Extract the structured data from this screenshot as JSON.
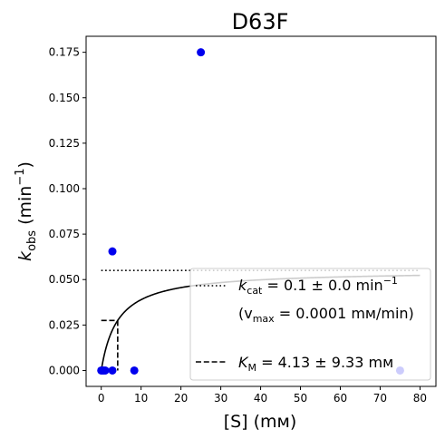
{
  "chart_data": {
    "type": "scatter",
    "title": "D63F",
    "xlabel": "[S] (mм)",
    "ylabel_main": "k",
    "ylabel_sub": "obs",
    "ylabel_rest": " (min",
    "ylabel_sup": "−1",
    "ylabel_close": ")",
    "xlim": [
      -3.8,
      84
    ],
    "ylim": [
      -0.00875,
      0.1838
    ],
    "x_ticks": [
      0,
      10,
      20,
      30,
      40,
      50,
      60,
      70,
      80
    ],
    "x_tick_labels": [
      "0",
      "10",
      "20",
      "30",
      "40",
      "50",
      "60",
      "70",
      "80"
    ],
    "y_ticks": [
      0,
      0.025,
      0.05,
      0.075,
      0.1,
      0.125,
      0.15,
      0.175
    ],
    "y_tick_labels": [
      "0.000",
      "0.025",
      "0.050",
      "0.075",
      "0.100",
      "0.125",
      "0.150",
      "0.175"
    ],
    "grid": false,
    "series": [
      {
        "points": [
          {
            "x": 0,
            "y": 0.0
          },
          {
            "x": 0.3,
            "y": 0.0
          },
          {
            "x": 0.6,
            "y": 0.0
          },
          {
            "x": 1.0,
            "y": 0.0
          },
          {
            "x": 2.8,
            "y": 0.0
          },
          {
            "x": 2.8,
            "y": 0.0655
          },
          {
            "x": 8.3,
            "y": 0.0
          },
          {
            "x": 25,
            "y": 0.175
          },
          {
            "x": 75,
            "y": 0.0
          }
        ],
        "color": "#0000ee"
      }
    ],
    "fit_curve": {
      "vmax": 0.055,
      "km": 4.13,
      "x_max": 80,
      "color": "#000000"
    },
    "vmax_line": {
      "y": 0.055,
      "x_start": 0,
      "x_end": 80,
      "style": "dotted"
    },
    "km_line": {
      "x": 4.13,
      "y": 0.0275,
      "x_start": 0,
      "style": "dashed"
    },
    "legend": {
      "placement": "lower-right",
      "kcat_sym": "k",
      "kcat_sub": "cat",
      "kcat_text": " = 0.1 ± 0.0 min",
      "kcat_sup": "−1",
      "vmax_open": "(v",
      "vmax_sub": "max",
      "vmax_text": " = 0.0001 mм/min)",
      "km_sym": "K",
      "km_sub": "M",
      "km_text": " = 4.13 ± 9.33 mм"
    }
  }
}
